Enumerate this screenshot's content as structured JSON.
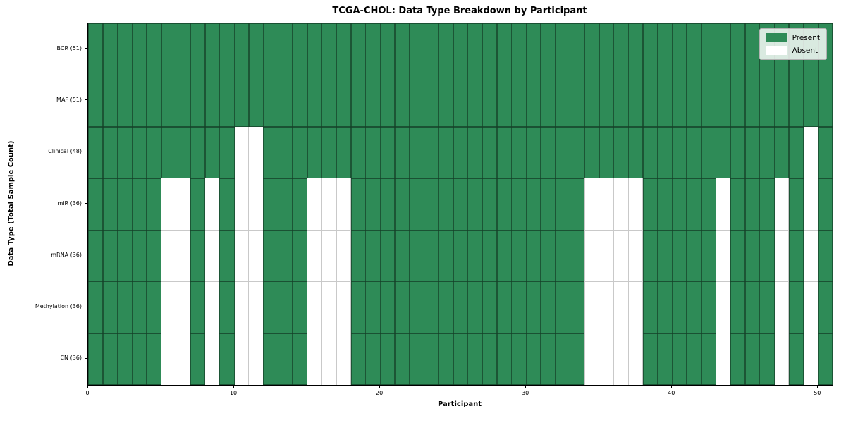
{
  "chart_data": {
    "type": "heatmap",
    "title": "TCGA-CHOL: Data Type Breakdown by Participant",
    "xlabel": "Participant",
    "ylabel": "Data Type (Total Sample Count)",
    "n_participants": 51,
    "xlim": [
      0,
      51
    ],
    "x_ticks": [
      0,
      10,
      20,
      30,
      40,
      50
    ],
    "grid": true,
    "rows": [
      {
        "label": "BCR (51)",
        "present_count": 51,
        "absent_participants": []
      },
      {
        "label": "MAF (51)",
        "present_count": 51,
        "absent_participants": []
      },
      {
        "label": "Clinical (48)",
        "present_count": 48,
        "absent_participants": [
          10,
          11,
          49
        ]
      },
      {
        "label": "miR (36)",
        "present_count": 36,
        "absent_participants": [
          5,
          6,
          8,
          10,
          11,
          15,
          16,
          17,
          34,
          35,
          36,
          37,
          43,
          47,
          49
        ]
      },
      {
        "label": "mRNA (36)",
        "present_count": 36,
        "absent_participants": [
          5,
          6,
          8,
          10,
          11,
          15,
          16,
          17,
          34,
          35,
          36,
          37,
          43,
          47,
          49
        ]
      },
      {
        "label": "Methylation (36)",
        "present_count": 36,
        "absent_participants": [
          5,
          6,
          8,
          10,
          11,
          15,
          16,
          17,
          34,
          35,
          36,
          37,
          43,
          47,
          49
        ]
      },
      {
        "label": "CN (36)",
        "present_count": 36,
        "absent_participants": [
          5,
          6,
          8,
          10,
          11,
          15,
          16,
          17,
          34,
          35,
          36,
          37,
          43,
          47,
          49
        ]
      }
    ],
    "legend": [
      {
        "label": "Present",
        "color": "#2e8b57"
      },
      {
        "label": "Absent",
        "color": "#ffffff"
      }
    ],
    "legend_position": "upper right",
    "colors": {
      "present": "#2e8b57",
      "absent": "#ffffff",
      "grid_light": "#c9c9c9",
      "cell_edge": "rgba(0,0,0,0.55)",
      "frame": "#000000"
    }
  }
}
